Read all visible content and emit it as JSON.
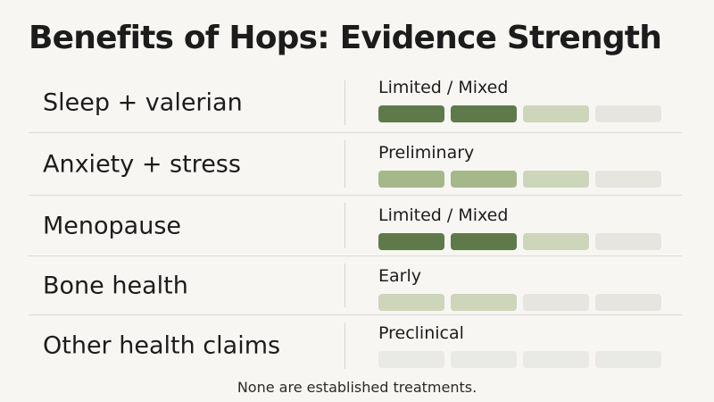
{
  "title": "Benefits of Hops: Evidence Strength",
  "footnote": "None are established treatments.",
  "colors": {
    "dark": "#5e7a4a",
    "medium": "#a4b88a",
    "light": "#cdd5bb",
    "pale": "#e6e6e0",
    "faint": "#e9e9e5"
  },
  "rows": [
    {
      "label": "Sleep + valerian",
      "level": "Limited / Mixed",
      "bars": [
        "dark",
        "dark",
        "light",
        "pale"
      ]
    },
    {
      "label": "Anxiety + stress",
      "level": "Preliminary",
      "bars": [
        "medium",
        "medium",
        "light",
        "pale"
      ]
    },
    {
      "label": "Menopause",
      "level": "Limited / Mixed",
      "bars": [
        "dark",
        "dark",
        "light",
        "pale"
      ]
    },
    {
      "label": "Bone health",
      "level": "Early",
      "bars": [
        "light",
        "light",
        "pale",
        "pale"
      ]
    },
    {
      "label": "Other health claims",
      "level": "Preclinical",
      "bars": [
        "faint",
        "faint",
        "faint",
        "faint"
      ]
    }
  ]
}
